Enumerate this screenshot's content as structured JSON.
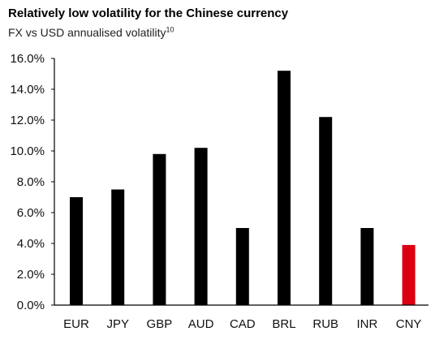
{
  "chart_data": {
    "type": "bar",
    "title": "Relatively low volatility for the Chinese currency",
    "subtitle": "FX vs USD annualised volatility",
    "subtitle_footnote": "10",
    "xlabel": "",
    "ylabel": "",
    "categories": [
      "EUR",
      "JPY",
      "GBP",
      "AUD",
      "CAD",
      "BRL",
      "RUB",
      "INR",
      "CNY"
    ],
    "values": [
      7.0,
      7.5,
      9.8,
      10.2,
      5.0,
      15.2,
      12.2,
      5.0,
      3.9
    ],
    "ylim": [
      0,
      16
    ],
    "yticks": [
      0,
      2,
      4,
      6,
      8,
      10,
      12,
      14,
      16
    ],
    "ytick_labels": [
      "0.0%",
      "2.0%",
      "4.0%",
      "6.0%",
      "8.0%",
      "10.0%",
      "12.0%",
      "14.0%",
      "16.0%"
    ],
    "grid": false,
    "legend": "none",
    "colors": {
      "default_bar": "#000000",
      "highlight_bar": "#db0011"
    },
    "highlight_category": "CNY"
  }
}
